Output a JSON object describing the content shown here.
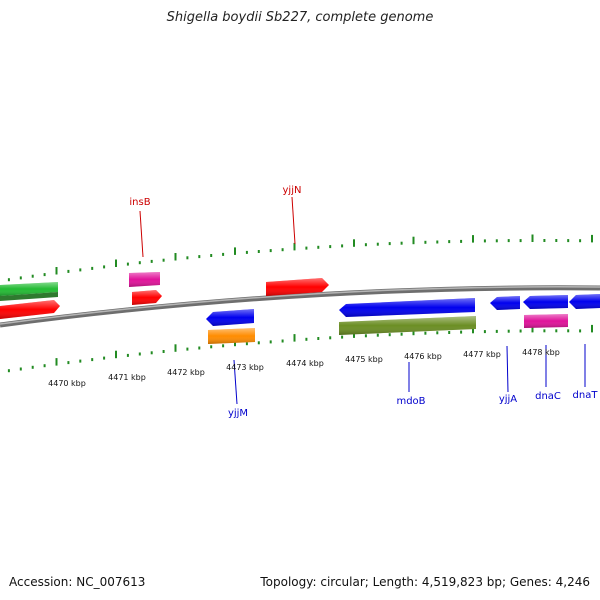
{
  "title": "Shigella boydii Sb227, complete genome",
  "footer": {
    "accession": "Accession: NC_007613",
    "summary": "Topology: circular; Length: 4,519,823 bp; Genes: 4,246"
  },
  "scale_labels": [
    "4470 kbp",
    "4471 kbp",
    "4472 kbp",
    "4473 kbp",
    "4474 kbp",
    "4475 kbp",
    "4476 kbp",
    "4477 kbp",
    "4478 kbp"
  ],
  "gene_labels": {
    "insB": "insB",
    "yjjN": "yjjN",
    "yjjM": "yjjM",
    "mdoB": "mdoB",
    "yjjA": "yjjA",
    "dnaC": "dnaC",
    "dnaT": "dnaT"
  },
  "colors": {
    "red": "#ff0000",
    "pink": "#e0129a",
    "blue": "#0000ee",
    "green": "#22bb33",
    "dark_green": "#2f7a2f",
    "olive": "#6b8e23",
    "orange": "#ff8c00",
    "tick_green": "#228b22",
    "backbone": "#808080",
    "label_red": "#cc0000",
    "label_blue": "#0000cc"
  }
}
